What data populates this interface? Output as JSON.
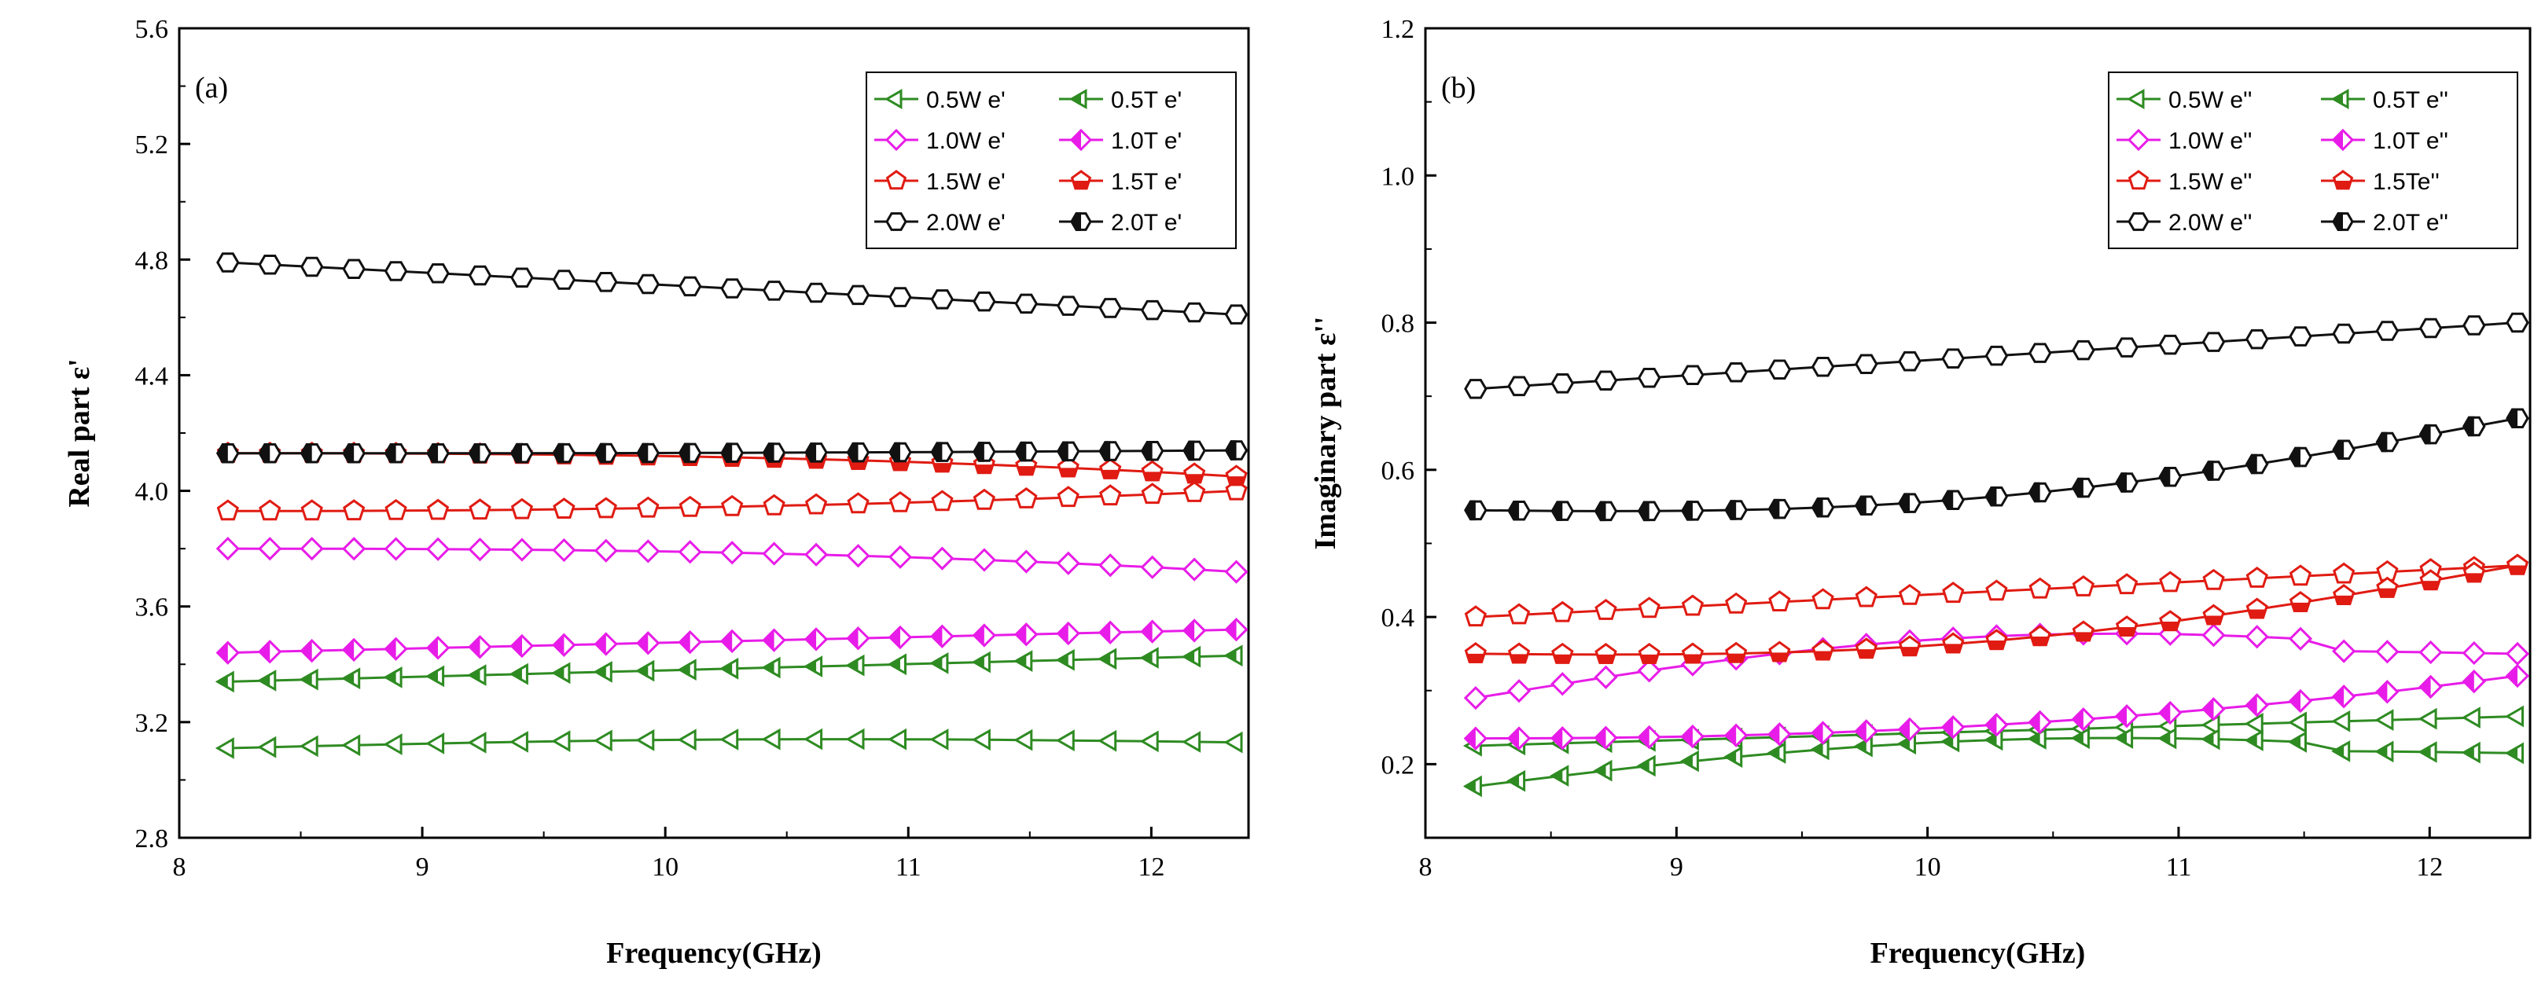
{
  "figure": {
    "description_free": true
  },
  "chart_data": [
    {
      "type": "line",
      "panel_label": "(a)",
      "xlabel": "Frequency(GHz)",
      "ylabel": "Real part ε'",
      "xlim": [
        8,
        12.4
      ],
      "ylim": [
        2.8,
        5.6
      ],
      "xticks": [
        8,
        9,
        10,
        11,
        12
      ],
      "yticks": [
        2.8,
        3.2,
        3.6,
        4.0,
        4.4,
        4.8,
        5.2,
        5.6
      ],
      "ytick_labels": [
        "2.8",
        "3.2",
        "3.6",
        "4.0",
        "4.4",
        "4.8",
        "5.2",
        "5.6"
      ],
      "legend_position": "top-right",
      "series": [
        {
          "name": "0.5W e'",
          "color": "#2e8b22",
          "marker": "tri-left",
          "fill": "open",
          "start": 3.11,
          "end": 3.13,
          "profile": "flat"
        },
        {
          "name": "0.5T e'",
          "color": "#2e8b22",
          "marker": "tri-left",
          "fill": "half",
          "start": 3.34,
          "end": 3.43,
          "profile": "rise"
        },
        {
          "name": "1.0W e'",
          "color": "#e81ce8",
          "marker": "diamond",
          "fill": "open",
          "start": 3.8,
          "end": 3.72,
          "profile": "fall-late"
        },
        {
          "name": "1.0T e'",
          "color": "#e81ce8",
          "marker": "diamond",
          "fill": "half",
          "start": 3.44,
          "end": 3.52,
          "profile": "rise"
        },
        {
          "name": "1.5W e'",
          "color": "#e01b12",
          "marker": "pentagon",
          "fill": "open",
          "start": 3.93,
          "end": 4.0,
          "profile": "rise-late"
        },
        {
          "name": "1.5T e'",
          "color": "#e01b12",
          "marker": "pentagon",
          "fill": "half",
          "start": 4.13,
          "end": 4.05,
          "profile": "fall-late"
        },
        {
          "name": "2.0W e'",
          "color": "#111111",
          "marker": "hexagon",
          "fill": "open",
          "start": 4.79,
          "end": 4.61,
          "profile": "fall"
        },
        {
          "name": "2.0T e'",
          "color": "#111111",
          "marker": "hexagon",
          "fill": "half",
          "start": 4.13,
          "end": 4.14,
          "profile": "dip"
        }
      ]
    },
    {
      "type": "line",
      "panel_label": "(b)",
      "xlabel": "Frequency(GHz)",
      "ylabel": "Imaginary part ε''",
      "xlim": [
        8,
        12.4
      ],
      "ylim": [
        0.1,
        1.2
      ],
      "xticks": [
        8,
        9,
        10,
        11,
        12
      ],
      "yticks": [
        0.2,
        0.4,
        0.6,
        0.8,
        1.0,
        1.2
      ],
      "ytick_labels": [
        "0.2",
        "0.4",
        "0.6",
        "0.8",
        "1.0",
        "1.2"
      ],
      "legend_position": "top-right",
      "series": [
        {
          "name": "0.5W e''",
          "color": "#2e8b22",
          "marker": "tri-left",
          "fill": "open",
          "start": 0.225,
          "end": 0.265,
          "profile": "rise"
        },
        {
          "name": "0.5T e''",
          "color": "#2e8b22",
          "marker": "tri-left",
          "fill": "half",
          "start": 0.17,
          "end": 0.215,
          "profile": "hump"
        },
        {
          "name": "1.0W e''",
          "color": "#e81ce8",
          "marker": "diamond",
          "fill": "open",
          "start": 0.29,
          "end": 0.35,
          "profile": "hump"
        },
        {
          "name": "1.0T e''",
          "color": "#e81ce8",
          "marker": "diamond",
          "fill": "half",
          "start": 0.235,
          "end": 0.32,
          "profile": "rise-late"
        },
        {
          "name": "1.5W e''",
          "color": "#e01b12",
          "marker": "pentagon",
          "fill": "open",
          "start": 0.4,
          "end": 0.47,
          "profile": "rise"
        },
        {
          "name": "1.5Te''",
          "color": "#e01b12",
          "marker": "pentagon",
          "fill": "half",
          "start": 0.35,
          "end": 0.47,
          "profile": "dip"
        },
        {
          "name": "2.0W e''",
          "color": "#111111",
          "marker": "hexagon",
          "fill": "open",
          "start": 0.71,
          "end": 0.8,
          "profile": "rise"
        },
        {
          "name": "2.0T e''",
          "color": "#111111",
          "marker": "hexagon",
          "fill": "half",
          "start": 0.545,
          "end": 0.67,
          "profile": "dip"
        }
      ]
    }
  ]
}
